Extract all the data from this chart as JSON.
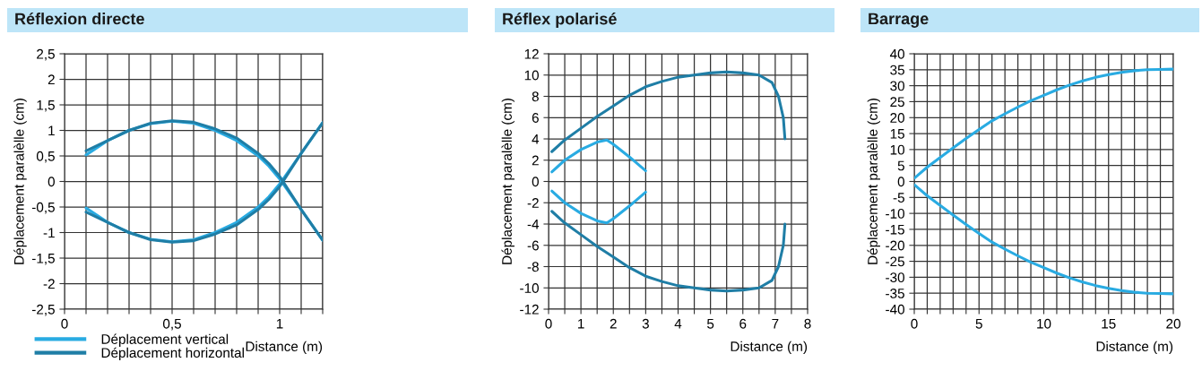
{
  "chart_data": [
    {
      "type": "line",
      "title": "Réflexion directe",
      "xlabel": "Distance (m)",
      "ylabel": "Déplacement paralèlle (cm)",
      "grid": true,
      "legend": "bottom left",
      "xlim": [
        0,
        1.2
      ],
      "xticks": [
        0,
        {
          "value": 0.1,
          "label": null
        },
        {
          "value": 0.2,
          "label": null
        },
        {
          "value": 0.3,
          "label": null
        },
        {
          "value": 0.4,
          "label": null
        },
        {
          "value": 0.5,
          "label": "0,5"
        },
        {
          "value": 0.6,
          "label": null
        },
        {
          "value": 0.7,
          "label": null
        },
        {
          "value": 0.8,
          "label": null
        },
        {
          "value": 0.9,
          "label": null
        },
        1,
        {
          "value": 1.1,
          "label": null
        },
        {
          "value": 1.2,
          "label": null
        }
      ],
      "ylim": [
        -2.5,
        2.5
      ],
      "yticks": [
        {
          "value": -2.5,
          "label": "-2,5"
        },
        -2,
        {
          "value": -1.5,
          "label": "-1,5"
        },
        -1,
        {
          "value": -0.5,
          "label": "-0,5"
        },
        0,
        {
          "value": 0.5,
          "label": "0,5"
        },
        1,
        {
          "value": 1.5,
          "label": "1,5"
        },
        2,
        {
          "value": 2.5,
          "label": "2,5"
        }
      ],
      "series": [
        {
          "name": "Déplacement vertical",
          "color": "#29abe2",
          "x": [
            0.1,
            0.2,
            0.3,
            0.4,
            0.5,
            0.6,
            0.7,
            0.8,
            0.9,
            0.95,
            1.0,
            1.1,
            1.2
          ],
          "values": [
            0.52,
            0.8,
            1.0,
            1.13,
            1.18,
            1.14,
            1.0,
            0.8,
            0.5,
            0.3,
            0.05,
            -0.55,
            -1.15
          ]
        },
        {
          "color": "#29abe2",
          "x": [
            0.1,
            0.2,
            0.3,
            0.4,
            0.5,
            0.6,
            0.7,
            0.8,
            0.9,
            0.95,
            1.0,
            1.1,
            1.2
          ],
          "values": [
            -0.52,
            -0.8,
            -1.0,
            -1.13,
            -1.18,
            -1.14,
            -1.0,
            -0.8,
            -0.5,
            -0.3,
            -0.05,
            0.55,
            1.15
          ]
        },
        {
          "name": "Déplacement horizontal",
          "color": "#1f7ea6",
          "x": [
            0.1,
            0.2,
            0.3,
            0.4,
            0.5,
            0.6,
            0.7,
            0.8,
            0.9,
            0.95,
            1.0,
            1.1,
            1.2
          ],
          "values": [
            0.6,
            0.8,
            1.0,
            1.14,
            1.19,
            1.16,
            1.03,
            0.85,
            0.55,
            0.35,
            0.1,
            -0.55,
            -1.15
          ]
        },
        {
          "color": "#1f7ea6",
          "x": [
            0.1,
            0.2,
            0.3,
            0.4,
            0.5,
            0.6,
            0.7,
            0.8,
            0.9,
            0.95,
            1.0,
            1.1,
            1.2
          ],
          "values": [
            -0.6,
            -0.8,
            -1.0,
            -1.14,
            -1.19,
            -1.16,
            -1.03,
            -0.85,
            -0.55,
            -0.35,
            -0.1,
            0.55,
            1.15
          ]
        }
      ]
    },
    {
      "type": "line",
      "title": "Réflex polarisé",
      "xlabel": "Distance (m)",
      "ylabel": "Déplacement paralèlle (cm)",
      "grid": true,
      "xlim": [
        0,
        8
      ],
      "xticks": [
        0,
        {
          "value": 0.5,
          "label": null
        },
        1,
        {
          "value": 1.5,
          "label": null
        },
        2,
        {
          "value": 2.5,
          "label": null
        },
        3,
        {
          "value": 3.5,
          "label": null
        },
        4,
        {
          "value": 4.5,
          "label": null
        },
        5,
        {
          "value": 5.5,
          "label": null
        },
        6,
        {
          "value": 6.5,
          "label": null
        },
        7,
        {
          "value": 7.5,
          "label": null
        },
        8
      ],
      "ylim": [
        -12,
        12
      ],
      "yticks": [
        -12,
        -10,
        -8,
        -6,
        -4,
        -2,
        0,
        2,
        4,
        6,
        8,
        10,
        12
      ],
      "series": [
        {
          "color": "#29abe2",
          "x": [
            0.1,
            0.5,
            1.0,
            1.5,
            1.8,
            2.0,
            2.5,
            3.0
          ],
          "values": [
            0.9,
            2.0,
            3.0,
            3.7,
            3.9,
            3.5,
            2.3,
            1.0
          ]
        },
        {
          "color": "#29abe2",
          "x": [
            0.1,
            0.5,
            1.0,
            1.5,
            1.8,
            2.0,
            2.5,
            3.0
          ],
          "values": [
            -0.9,
            -2.0,
            -3.0,
            -3.7,
            -3.9,
            -3.5,
            -2.3,
            -1.0
          ]
        },
        {
          "color": "#1f7ea6",
          "x": [
            0.1,
            0.5,
            1.0,
            1.5,
            2.0,
            2.5,
            3.0,
            3.5,
            4.0,
            4.5,
            5.0,
            5.5,
            6.0,
            6.5,
            6.9,
            7.1,
            7.25,
            7.3
          ],
          "values": [
            2.8,
            3.9,
            5.0,
            6.1,
            7.1,
            8.1,
            8.9,
            9.4,
            9.8,
            10.0,
            10.2,
            10.3,
            10.2,
            10.0,
            9.3,
            8.0,
            6.0,
            4.0
          ]
        },
        {
          "color": "#1f7ea6",
          "x": [
            0.1,
            0.5,
            1.0,
            1.5,
            2.0,
            2.5,
            3.0,
            3.5,
            4.0,
            4.5,
            5.0,
            5.5,
            6.0,
            6.5,
            6.9,
            7.1,
            7.25,
            7.3
          ],
          "values": [
            -2.8,
            -3.9,
            -5.0,
            -6.1,
            -7.1,
            -8.1,
            -8.9,
            -9.4,
            -9.8,
            -10.0,
            -10.2,
            -10.3,
            -10.2,
            -10.0,
            -9.3,
            -8.0,
            -6.0,
            -4.0
          ]
        }
      ]
    },
    {
      "type": "line",
      "title": "Barrage",
      "xlabel": "Distance (m)",
      "ylabel": "Déplacement paralèlle (cm)",
      "grid": true,
      "xlim": [
        0,
        20
      ],
      "xticks": [
        0,
        {
          "value": 1,
          "label": null
        },
        {
          "value": 2,
          "label": null
        },
        {
          "value": 3,
          "label": null
        },
        {
          "value": 4,
          "label": null
        },
        5,
        {
          "value": 6,
          "label": null
        },
        {
          "value": 7,
          "label": null
        },
        {
          "value": 8,
          "label": null
        },
        {
          "value": 9,
          "label": null
        },
        10,
        {
          "value": 11,
          "label": null
        },
        {
          "value": 12,
          "label": null
        },
        {
          "value": 13,
          "label": null
        },
        {
          "value": 14,
          "label": null
        },
        15,
        {
          "value": 16,
          "label": null
        },
        {
          "value": 17,
          "label": null
        },
        {
          "value": 18,
          "label": null
        },
        {
          "value": 19,
          "label": null
        },
        20
      ],
      "ylim": [
        -40,
        40
      ],
      "yticks": [
        -40,
        -35,
        -30,
        -25,
        -20,
        -15,
        -10,
        -5,
        0,
        5,
        10,
        15,
        20,
        25,
        30,
        35,
        40
      ],
      "series": [
        {
          "color": "#29abe2",
          "x": [
            0,
            1,
            2,
            3,
            4,
            5,
            6,
            7,
            8,
            9,
            10,
            11,
            12,
            13,
            14,
            15,
            16,
            17,
            18,
            19,
            20
          ],
          "values": [
            1,
            4.5,
            7.5,
            10.5,
            13.5,
            16.3,
            19,
            21.2,
            23.3,
            25.3,
            27,
            28.7,
            30.2,
            31.5,
            32.6,
            33.5,
            34.2,
            34.7,
            35,
            35.1,
            35.2
          ]
        },
        {
          "color": "#29abe2",
          "x": [
            0,
            1,
            2,
            3,
            4,
            5,
            6,
            7,
            8,
            9,
            10,
            11,
            12,
            13,
            14,
            15,
            16,
            17,
            18,
            19,
            20
          ],
          "values": [
            -1,
            -4.5,
            -7.5,
            -10.5,
            -13.5,
            -16.3,
            -19,
            -21.2,
            -23.3,
            -25.3,
            -27,
            -28.7,
            -30.2,
            -31.5,
            -32.6,
            -33.5,
            -34.2,
            -34.7,
            -35,
            -35.1,
            -35.2
          ]
        }
      ]
    }
  ]
}
